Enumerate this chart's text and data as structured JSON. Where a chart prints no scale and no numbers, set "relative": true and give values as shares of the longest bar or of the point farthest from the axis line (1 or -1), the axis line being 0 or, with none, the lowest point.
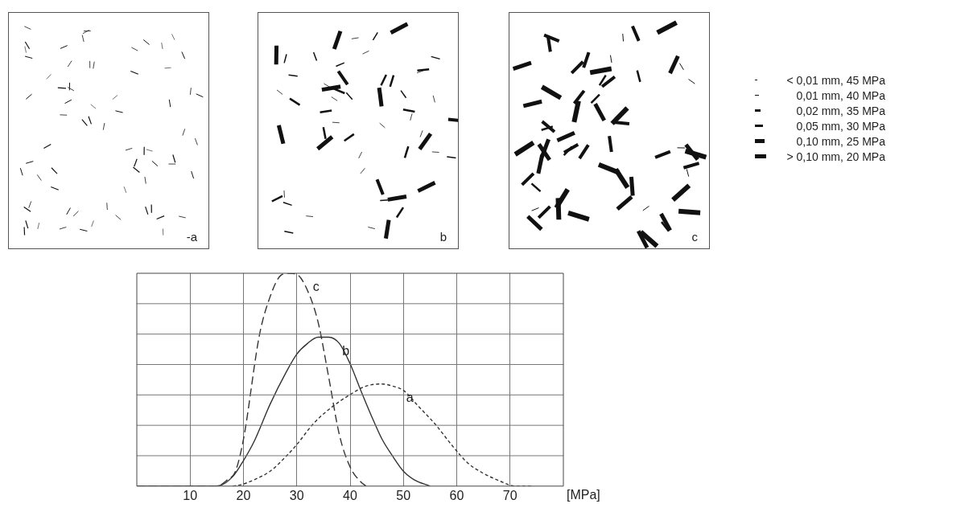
{
  "chart_data": {
    "type": "line",
    "xlabel": "[MPa]",
    "xlim": [
      0,
      80
    ],
    "xticks": [
      10,
      20,
      30,
      40,
      50,
      60,
      70
    ],
    "relative": true,
    "grid": true,
    "legend": false,
    "marker": "none",
    "annotations": [
      "-a",
      "b",
      "c",
      "< 0,01 mm, 45 MPa",
      "0,01 mm, 40 MPa",
      "0,02 mm, 35 MPa",
      "0,05 mm, 30 MPa",
      "0,10 mm, 25 MPa",
      "> 0,10 mm, 20 MPa"
    ],
    "series": [
      {
        "name": "c",
        "color": "#333333",
        "line_style": "dashed",
        "x": [
          0,
          15,
          17,
          18.5,
          20,
          23,
          25,
          27,
          28.5,
          30,
          32,
          34,
          36,
          38,
          40,
          42,
          43
        ],
        "values": [
          0,
          0,
          0.03,
          0.07,
          0.22,
          0.71,
          0.89,
          0.99,
          1,
          0.995,
          0.92,
          0.77,
          0.51,
          0.24,
          0.09,
          0.02,
          0
        ]
      },
      {
        "name": "b",
        "color": "#333333",
        "line_style": "solid",
        "x": [
          0,
          15,
          18,
          20,
          22,
          25,
          28,
          30,
          32,
          34,
          36,
          38,
          40,
          42,
          44,
          46,
          48,
          50,
          52,
          55
        ],
        "values": [
          0,
          0,
          0.045,
          0.12,
          0.21,
          0.385,
          0.535,
          0.62,
          0.67,
          0.7,
          0.7,
          0.67,
          0.575,
          0.45,
          0.33,
          0.22,
          0.14,
          0.07,
          0.03,
          0
        ]
      },
      {
        "name": "a",
        "color": "#333333",
        "line_style": "dotted",
        "x": [
          18,
          20,
          22,
          25,
          28,
          30,
          33,
          36,
          40,
          43,
          46,
          48,
          50,
          53,
          56,
          59,
          62,
          65,
          68,
          71,
          74
        ],
        "values": [
          0,
          0.01,
          0.03,
          0.07,
          0.14,
          0.195,
          0.29,
          0.36,
          0.43,
          0.47,
          0.48,
          0.47,
          0.45,
          0.37,
          0.29,
          0.195,
          0.11,
          0.06,
          0.025,
          0,
          0
        ]
      }
    ]
  }
}
